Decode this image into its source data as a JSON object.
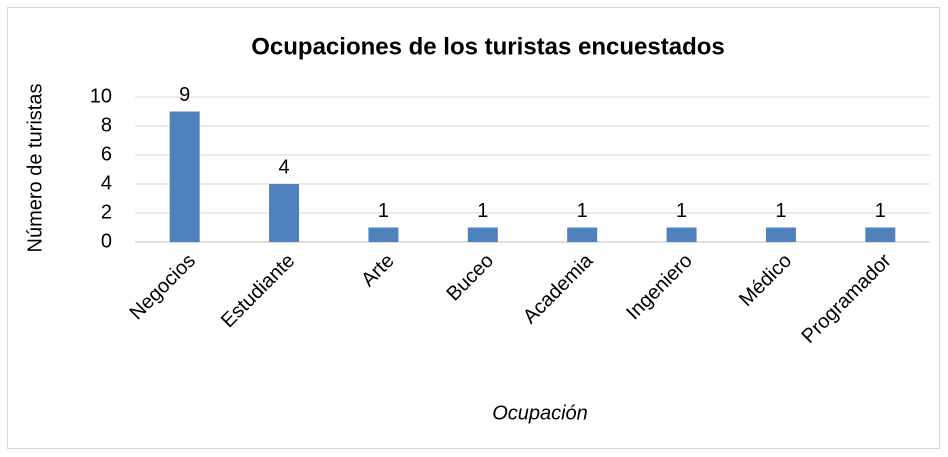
{
  "chart_data": {
    "type": "bar",
    "title": "Ocupaciones de los turistas encuestados",
    "x_label": "Ocupación",
    "y_label": "Número de turistas",
    "categories": [
      "Negocios",
      "Estudiante",
      "Arte",
      "Buceo",
      "Academia",
      "Ingeniero",
      "Médico",
      "Programador"
    ],
    "values": [
      9,
      4,
      1,
      1,
      1,
      1,
      1,
      1
    ],
    "color": "#4f81bd",
    "ylim": [
      0,
      10
    ],
    "yticks": [
      0,
      2,
      4,
      6,
      8,
      10
    ],
    "grid": true
  }
}
